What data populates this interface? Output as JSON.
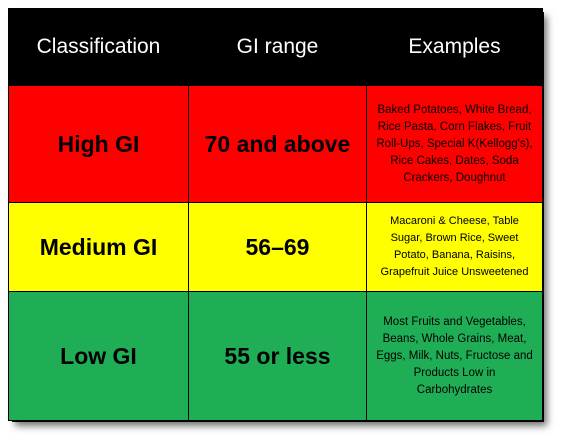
{
  "table": {
    "headers": [
      "Classification",
      "GI range",
      "Examples"
    ],
    "rows": [
      {
        "classification": "High GI",
        "range": "70 and above",
        "examples": "Baked Potatoes, White Bread, Rice Pasta, Corn Flakes, Fruit Roll-Ups, Special K(Kellogg's), Rice Cakes, Dates, Soda Crackers, Doughnut",
        "color": "#ff0000"
      },
      {
        "classification": "Medium GI",
        "range": "56–69",
        "examples": "Macaroni & Cheese, Table Sugar, Brown Rice, Sweet Potato, Banana, Raisins, Grapefruit Juice Unsweetened",
        "color": "#ffff00"
      },
      {
        "classification": "Low GI",
        "range": "55 or less",
        "examples": "Most Fruits and Vegetables, Beans, Whole Grains, Meat, Eggs, Milk, Nuts, Fructose and Products Low in Carbohydrates",
        "color": "#1fae55"
      }
    ],
    "header_bg": "#000000",
    "header_fg": "#ffffff"
  }
}
